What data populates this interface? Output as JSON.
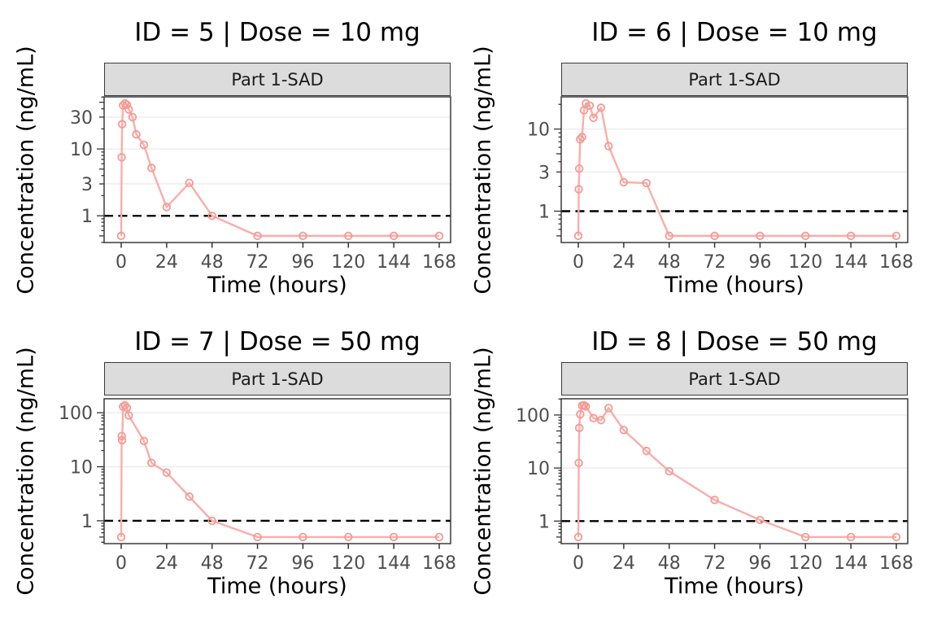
{
  "figure": {
    "x_axis_title": "Time (hours)",
    "y_axis_title": "Concentration (ng/mL)",
    "strip_label": "Part 1-SAD",
    "colors": {
      "line": "#F9AEA9",
      "marker": "#F69992",
      "grid": "#ECECEC",
      "strip_bg": "#DCDCDC",
      "panel_border": "#3A3A3A",
      "tick": "#333333",
      "tick_label": "#4D4D4D",
      "title": "#000000",
      "lloq_line": "#000000"
    }
  },
  "chart_data": [
    {
      "type": "line",
      "facet": "ID = 5 | Dose = 10 mg",
      "strip": "Part 1-SAD",
      "xlabel": "Time (hours)",
      "ylabel": "Concentration (ng/mL)",
      "yscale": "log",
      "xlim": [
        0,
        168
      ],
      "lloq": 1,
      "x_ticks": [
        0,
        24,
        48,
        72,
        96,
        120,
        144,
        168
      ],
      "y_ticks": [
        1,
        3,
        10,
        30
      ],
      "x": [
        0,
        0.25,
        0.5,
        1,
        2,
        3,
        4,
        6,
        8,
        12,
        16,
        24,
        36,
        48,
        72,
        96,
        120,
        144,
        168
      ],
      "y": [
        0.5,
        7.5,
        23.5,
        45,
        48,
        46,
        39,
        30,
        16.5,
        11.5,
        5.2,
        1.35,
        3.1,
        1.0,
        0.5,
        0.5,
        0.5,
        0.5,
        0.5
      ]
    },
    {
      "type": "line",
      "facet": "ID = 6 | Dose = 10 mg",
      "strip": "Part 1-SAD",
      "xlabel": "Time (hours)",
      "ylabel": "Concentration (ng/mL)",
      "yscale": "log",
      "xlim": [
        0,
        168
      ],
      "lloq": 1,
      "x_ticks": [
        0,
        24,
        48,
        72,
        96,
        120,
        144,
        168
      ],
      "y_ticks": [
        1,
        3,
        10
      ],
      "x": [
        0,
        0.25,
        0.5,
        1,
        2,
        3,
        4,
        6,
        8,
        12,
        16,
        24,
        36,
        48,
        72,
        96,
        120,
        144,
        168
      ],
      "y": [
        0.5,
        1.85,
        3.3,
        7.5,
        8.0,
        16.9,
        20.5,
        19.3,
        13.7,
        18.2,
        6.2,
        2.25,
        2.2,
        0.5,
        0.5,
        0.5,
        0.5,
        0.5,
        0.5
      ]
    },
    {
      "type": "line",
      "facet": "ID = 7 | Dose = 50 mg",
      "strip": "Part 1-SAD",
      "xlabel": "Time (hours)",
      "ylabel": "Concentration (ng/mL)",
      "yscale": "log",
      "xlim": [
        0,
        168
      ],
      "lloq": 1,
      "x_ticks": [
        0,
        24,
        48,
        72,
        96,
        120,
        144,
        168
      ],
      "y_ticks": [
        1,
        10,
        100
      ],
      "x": [
        0,
        0.25,
        0.5,
        1,
        2,
        3,
        4,
        12,
        16,
        24,
        36,
        48,
        72,
        96,
        120,
        144,
        168
      ],
      "y": [
        0.5,
        37,
        31,
        130,
        137,
        123,
        89,
        30,
        11.8,
        7.8,
        2.8,
        1.0,
        0.5,
        0.5,
        0.5,
        0.5,
        0.5
      ]
    },
    {
      "type": "line",
      "facet": "ID = 8 | Dose = 50 mg",
      "strip": "Part 1-SAD",
      "xlabel": "Time (hours)",
      "ylabel": "Concentration (ng/mL)",
      "yscale": "log",
      "xlim": [
        0,
        168
      ],
      "lloq": 1,
      "x_ticks": [
        0,
        24,
        48,
        72,
        96,
        120,
        144,
        168
      ],
      "y_ticks": [
        1,
        10,
        100
      ],
      "x": [
        0,
        0.25,
        0.5,
        1,
        2,
        3,
        4,
        8,
        12,
        16,
        24,
        36,
        48,
        72,
        96,
        120,
        144,
        168
      ],
      "y": [
        0.5,
        12.5,
        57,
        103,
        150,
        152,
        145,
        87,
        80,
        135,
        52,
        21,
        8.7,
        2.5,
        1.05,
        0.5,
        0.5,
        0.5
      ]
    }
  ]
}
